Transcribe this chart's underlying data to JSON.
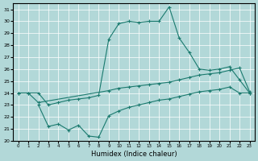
{
  "xlabel": "Humidex (Indice chaleur)",
  "xlim": [
    -0.5,
    23.5
  ],
  "ylim": [
    20,
    31.5
  ],
  "yticks": [
    20,
    21,
    22,
    23,
    24,
    25,
    26,
    27,
    28,
    29,
    30,
    31
  ],
  "xticks": [
    0,
    1,
    2,
    3,
    4,
    5,
    6,
    7,
    8,
    9,
    10,
    11,
    12,
    13,
    14,
    15,
    16,
    17,
    18,
    19,
    20,
    21,
    22,
    23
  ],
  "bg_color": "#b2d8d8",
  "grid_color": "#ffffff",
  "line_color": "#1a7a6e",
  "curve_x": [
    0,
    1,
    2,
    3,
    4,
    5,
    6,
    7,
    8,
    9,
    10,
    11,
    12,
    13,
    14,
    15,
    16,
    17,
    18,
    19,
    20,
    21,
    22,
    23
  ],
  "curve_y": [
    24,
    24,
    24,
    23,
    23.2,
    23.4,
    23.5,
    23.6,
    23.8,
    28.5,
    29.8,
    30.0,
    29.9,
    30.0,
    30.0,
    31.2,
    28.6,
    27.4,
    26.0,
    25.9,
    26.0,
    26.2,
    25.1,
    24.0
  ],
  "diag_x": [
    0,
    1,
    2,
    9,
    10,
    11,
    12,
    13,
    14,
    15,
    16,
    17,
    18,
    19,
    20,
    21,
    22,
    23
  ],
  "diag_y": [
    24,
    24,
    23.2,
    24.2,
    24.4,
    24.5,
    24.6,
    24.7,
    24.8,
    24.9,
    25.1,
    25.3,
    25.5,
    25.6,
    25.7,
    25.9,
    26.1,
    24.1
  ],
  "low_x": [
    2,
    3,
    4,
    5,
    6,
    7,
    8,
    9,
    10,
    11,
    12,
    13,
    14,
    15,
    16,
    17,
    18,
    19,
    20,
    21,
    22,
    23
  ],
  "low_y": [
    23.0,
    21.2,
    21.4,
    20.9,
    21.3,
    20.4,
    20.3,
    22.1,
    22.5,
    22.8,
    23.0,
    23.2,
    23.4,
    23.5,
    23.7,
    23.9,
    24.1,
    24.2,
    24.3,
    24.5,
    24.0,
    24.0
  ]
}
